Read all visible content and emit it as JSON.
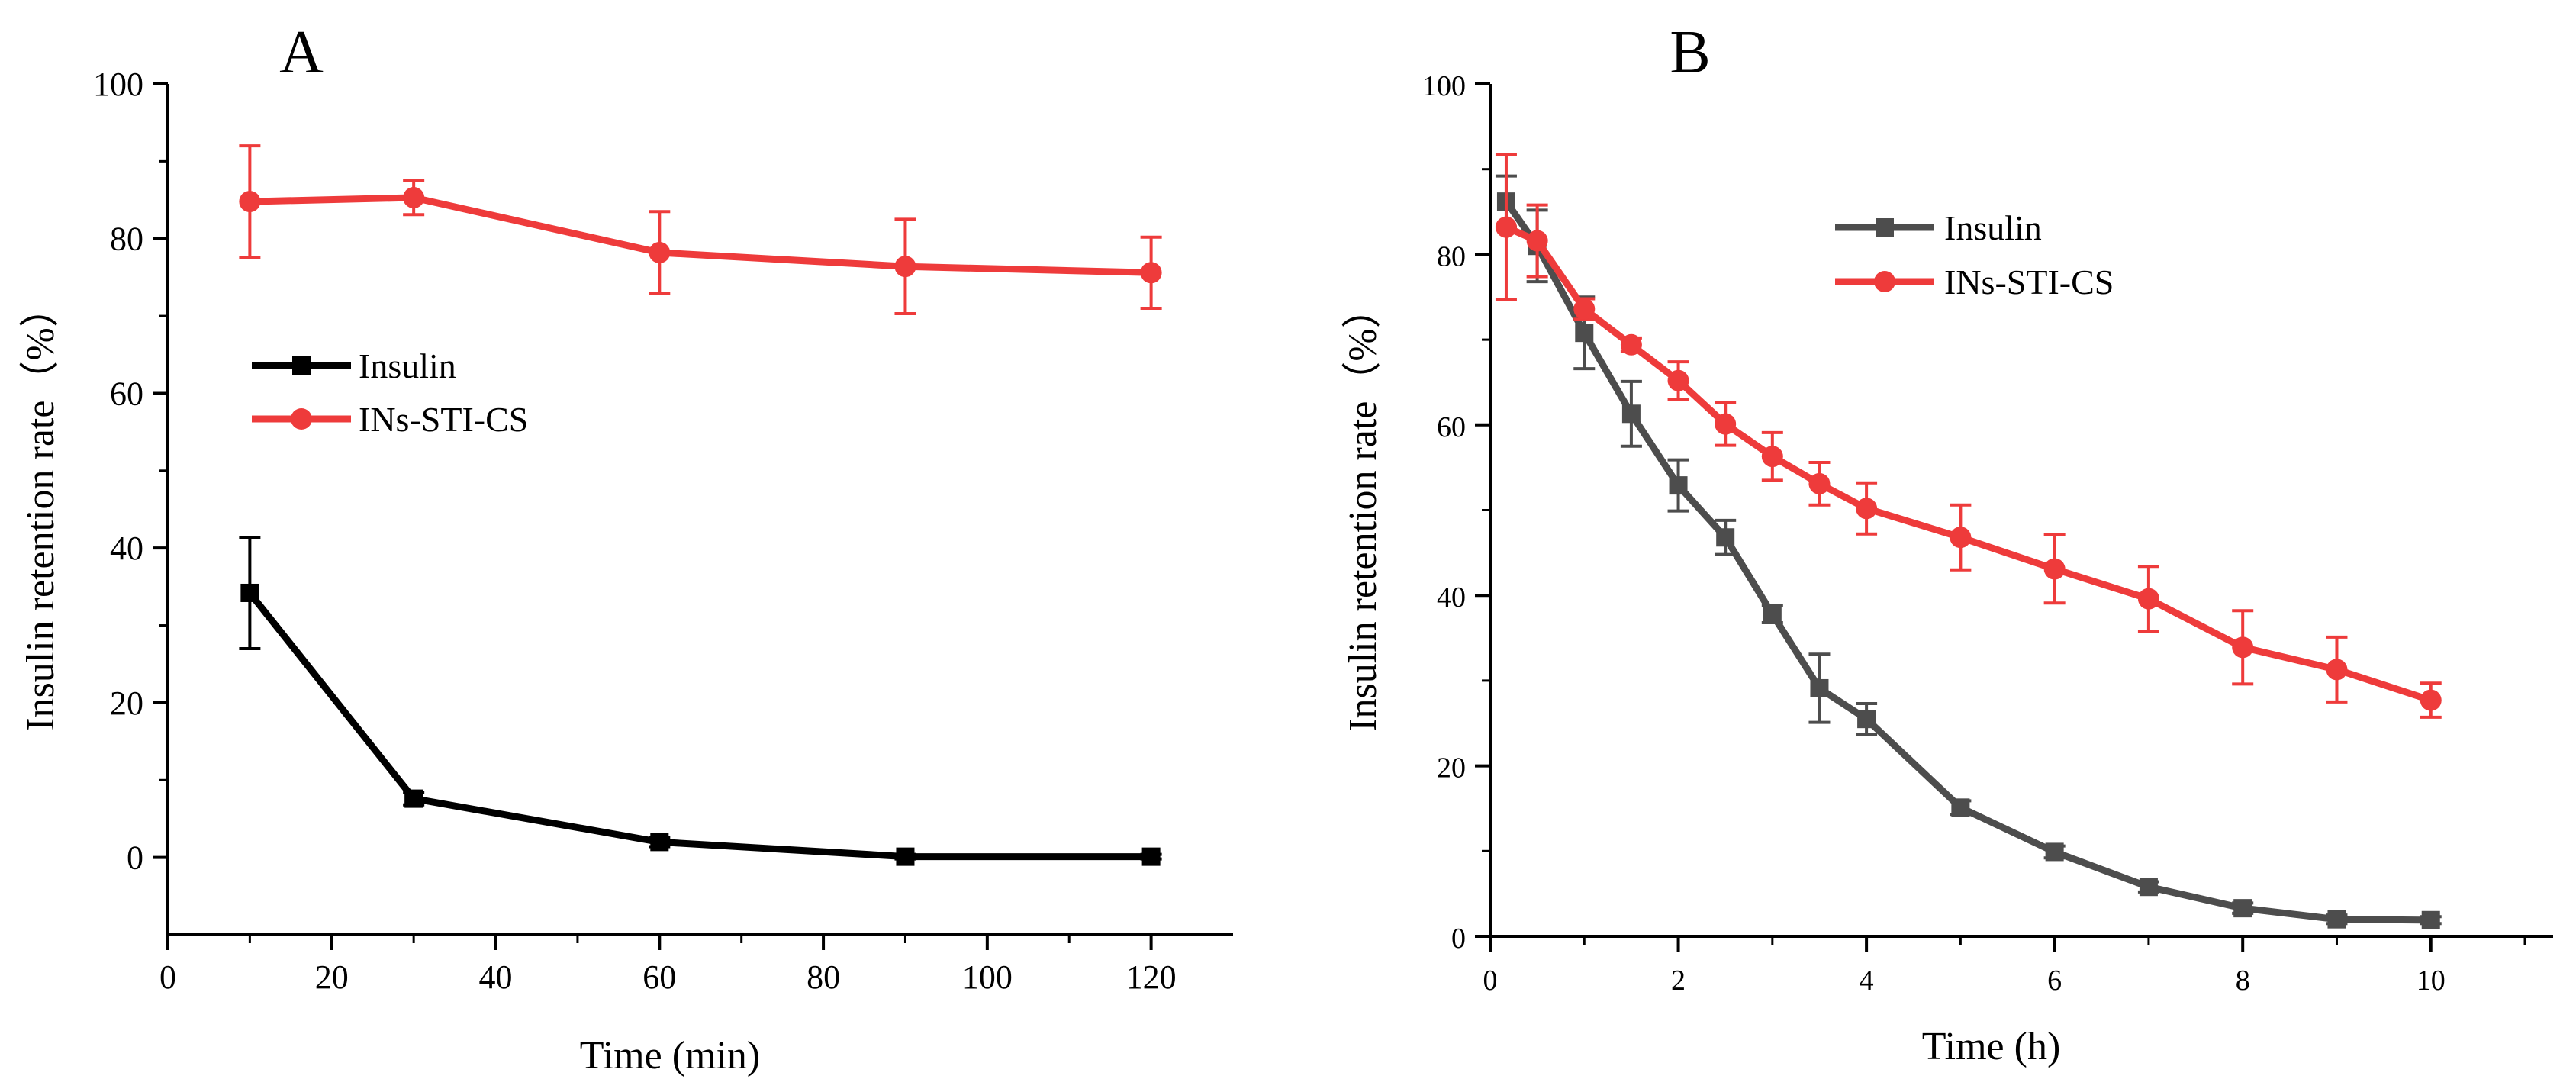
{
  "chart_data": [
    {
      "type": "line",
      "panel_label": "A",
      "xlabel": "Time (min)",
      "ylabel": "Insulin retention rate（%）",
      "xlim": [
        0,
        130
      ],
      "ylim": [
        -10,
        100
      ],
      "xticks": [
        0,
        20,
        40,
        60,
        80,
        100,
        120
      ],
      "yticks": [
        0,
        20,
        40,
        60,
        80,
        100
      ],
      "grid": false,
      "legend": "middle-left",
      "series": [
        {
          "name": "Insulin",
          "color": "#000000",
          "marker": "square",
          "x": [
            10,
            30,
            60,
            90,
            120
          ],
          "y": [
            34.2,
            7.6,
            2.0,
            0.1,
            0.1
          ],
          "error": [
            7.2,
            0.8,
            0.6,
            0.3,
            0.3
          ]
        },
        {
          "name": "INs-STI-CS",
          "color": "#ee3b3b",
          "marker": "circle",
          "x": [
            10,
            30,
            60,
            90,
            120
          ],
          "y": [
            84.8,
            85.3,
            78.2,
            76.4,
            75.6
          ],
          "error": [
            7.2,
            2.2,
            5.3,
            6.1,
            4.6
          ]
        }
      ]
    },
    {
      "type": "line",
      "panel_label": "B",
      "xlabel": "Time (h)",
      "ylabel": "Insulin retention rate（%）",
      "xlim": [
        0,
        11.3
      ],
      "ylim": [
        0,
        100
      ],
      "xticks": [
        0,
        2,
        4,
        6,
        8,
        10
      ],
      "yticks": [
        0,
        20,
        40,
        60,
        80,
        100
      ],
      "grid": false,
      "legend": "top-center",
      "series": [
        {
          "name": "Insulin",
          "color": "#4d4d4d",
          "marker": "square",
          "x": [
            0.17,
            0.5,
            1,
            1.5,
            2,
            2.5,
            3,
            3.5,
            4,
            5,
            6,
            7,
            8,
            9,
            10
          ],
          "y": [
            86.2,
            81.0,
            70.8,
            61.3,
            52.9,
            46.8,
            37.8,
            29.1,
            25.5,
            15.1,
            9.9,
            5.8,
            3.3,
            2.0,
            1.9
          ],
          "error": [
            3.0,
            4.2,
            4.2,
            3.8,
            3.0,
            2.0,
            1.0,
            4.0,
            1.8,
            0.8,
            0.7,
            0.6,
            0.6,
            0.5,
            0.4
          ]
        },
        {
          "name": "INs-STI-CS",
          "color": "#ee3b3b",
          "marker": "circle",
          "x": [
            0.17,
            0.5,
            1,
            1.5,
            2,
            2.5,
            3,
            3.5,
            4,
            5,
            6,
            7,
            8,
            9,
            10
          ],
          "y": [
            83.2,
            81.6,
            73.6,
            69.4,
            65.2,
            60.1,
            56.3,
            53.1,
            50.2,
            46.8,
            43.1,
            39.6,
            33.9,
            31.3,
            27.7
          ],
          "error": [
            8.5,
            4.2,
            1.2,
            0.8,
            2.2,
            2.5,
            2.8,
            2.5,
            3.0,
            3.8,
            4.0,
            3.8,
            4.3,
            3.8,
            2.0
          ]
        }
      ]
    }
  ]
}
